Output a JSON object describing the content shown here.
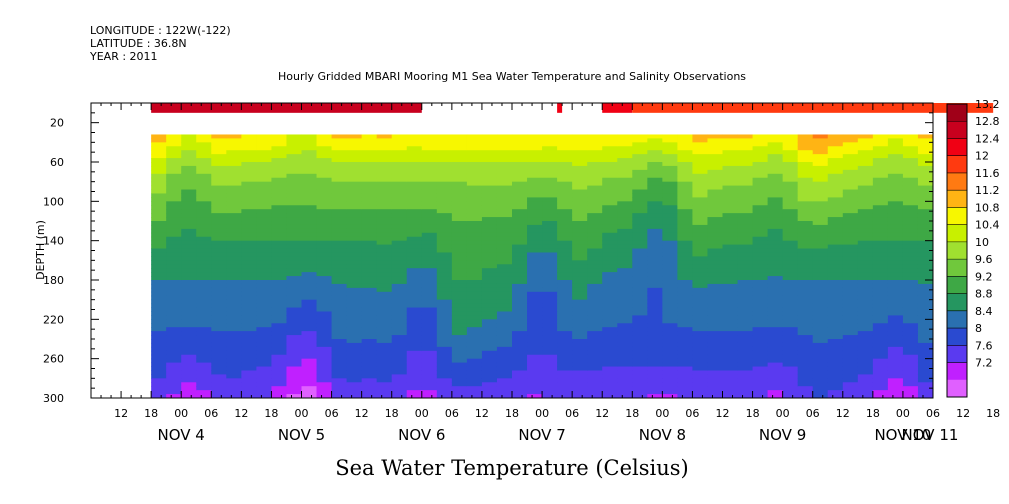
{
  "header": {
    "longitude": "LONGITUDE : 122W(-122)",
    "latitude": "LATITUDE : 36.8N",
    "year": "YEAR : 2011"
  },
  "chart_data": {
    "type": "heatmap",
    "title": "Hourly Gridded MBARI Mooring M1 Sea Water Temperature and Salinity Observations",
    "xlabel": "Sea Water Temperature (Celsius)",
    "ylabel": "DEPTH (m)",
    "x_range_hours": [
      0,
      168
    ],
    "x_start": "2011-11-03 06:00",
    "ylim": [
      300,
      0
    ],
    "y_ticks": [
      20,
      60,
      100,
      140,
      180,
      220,
      260,
      300
    ],
    "x_tick_labels": [
      "12",
      "18",
      "00",
      "06",
      "12",
      "18",
      "00",
      "06",
      "12",
      "18",
      "00",
      "06",
      "12",
      "18",
      "00",
      "06",
      "12",
      "18",
      "00",
      "06",
      "12",
      "18",
      "00",
      "06",
      "12",
      "18",
      "00",
      "06",
      "12",
      "18",
      "00",
      "06"
    ],
    "x_day_labels": [
      {
        "label": "NOV  4",
        "hour": 18
      },
      {
        "label": "NOV  5",
        "hour": 42
      },
      {
        "label": "NOV  6",
        "hour": 66
      },
      {
        "label": "NOV  7",
        "hour": 90
      },
      {
        "label": "NOV  8",
        "hour": 114
      },
      {
        "label": "NOV  9",
        "hour": 138
      },
      {
        "label": "NOV 10",
        "hour": 162
      },
      {
        "label": "NOV 11",
        "hour": 186
      }
    ],
    "color_levels": [
      13.2,
      12.8,
      12.4,
      12,
      11.6,
      11.2,
      10.8,
      10.4,
      10,
      9.6,
      9.2,
      8.8,
      8.4,
      8,
      7.6,
      7.2
    ],
    "colors": [
      "#a00018",
      "#c8001e",
      "#f00014",
      "#ff3a10",
      "#ff7a12",
      "#ffb414",
      "#f7f700",
      "#c8f000",
      "#a0e030",
      "#70c83c",
      "#3ea845",
      "#259660",
      "#2a70b0",
      "#2a4ad0",
      "#5a3af0",
      "#c020ff",
      "#e060ff"
    ],
    "surface_band": {
      "depth_range": [
        0,
        10
      ],
      "segments": [
        {
          "x_start": 12,
          "x_end": 66,
          "value": 13.0
        },
        {
          "x_start": 93,
          "x_end": 94,
          "value": 12.6
        },
        {
          "x_start": 102,
          "x_end": 108,
          "value": 12.5
        },
        {
          "x_start": 108,
          "x_end": 180,
          "value": 12.2
        }
      ]
    },
    "profile_data": {
      "depth_range": [
        32,
        300
      ],
      "base_profile": [
        {
          "depth": 32,
          "value": 11.2
        },
        {
          "depth": 40,
          "value": 11.0
        },
        {
          "depth": 60,
          "value": 10.4
        },
        {
          "depth": 80,
          "value": 10.0
        },
        {
          "depth": 100,
          "value": 9.7
        },
        {
          "depth": 130,
          "value": 9.3
        },
        {
          "depth": 160,
          "value": 9.0
        },
        {
          "depth": 190,
          "value": 8.7
        },
        {
          "depth": 220,
          "value": 8.5
        },
        {
          "depth": 250,
          "value": 8.2
        },
        {
          "depth": 280,
          "value": 7.9
        },
        {
          "depth": 300,
          "value": 7.6
        }
      ]
    }
  }
}
